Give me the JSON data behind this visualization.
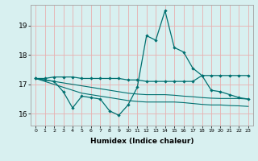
{
  "xlabel": "Humidex (Indice chaleur)",
  "background_color": "#d8f0f0",
  "grid_color": "#e8b0b0",
  "line_color": "#007070",
  "x_ticks": [
    0,
    1,
    2,
    3,
    4,
    5,
    6,
    7,
    8,
    9,
    10,
    11,
    12,
    13,
    14,
    15,
    16,
    17,
    18,
    19,
    20,
    21,
    22,
    23
  ],
  "y_ticks": [
    16,
    17,
    18,
    19
  ],
  "ylim": [
    15.6,
    19.7
  ],
  "xlim": [
    -0.5,
    23.5
  ],
  "line_volatile_x": [
    0,
    1,
    2,
    3,
    4,
    5,
    6,
    7,
    8,
    9,
    10,
    11,
    12,
    13,
    14,
    15,
    16,
    17,
    18,
    19,
    20,
    21,
    22,
    23
  ],
  "line_volatile_y": [
    17.2,
    17.15,
    17.1,
    16.75,
    16.2,
    16.6,
    16.55,
    16.5,
    16.1,
    15.95,
    16.3,
    16.9,
    18.65,
    18.5,
    19.5,
    18.25,
    18.1,
    17.55,
    17.3,
    16.8,
    16.75,
    16.65,
    16.55,
    16.5
  ],
  "line_flat_x": [
    0,
    1,
    2,
    3,
    4,
    5,
    6,
    7,
    8,
    9,
    10,
    11,
    12,
    13,
    14,
    15,
    16,
    17,
    18,
    19,
    20,
    21,
    22,
    23
  ],
  "line_flat_y": [
    17.2,
    17.2,
    17.25,
    17.25,
    17.25,
    17.2,
    17.2,
    17.2,
    17.2,
    17.2,
    17.15,
    17.15,
    17.1,
    17.1,
    17.1,
    17.1,
    17.1,
    17.1,
    17.3,
    17.3,
    17.3,
    17.3,
    17.3,
    17.3
  ],
  "line_decline1_x": [
    0,
    1,
    2,
    3,
    4,
    5,
    6,
    7,
    8,
    9,
    10,
    11,
    12,
    13,
    14,
    15,
    16,
    17,
    18,
    19,
    20,
    21,
    22,
    23
  ],
  "line_decline1_y": [
    17.2,
    17.1,
    17.0,
    16.9,
    16.8,
    16.7,
    16.65,
    16.6,
    16.55,
    16.5,
    16.45,
    16.42,
    16.4,
    16.4,
    16.4,
    16.4,
    16.38,
    16.35,
    16.32,
    16.3,
    16.3,
    16.28,
    16.27,
    16.25
  ],
  "line_decline2_x": [
    0,
    1,
    2,
    3,
    4,
    5,
    6,
    7,
    8,
    9,
    10,
    11,
    12,
    13,
    14,
    15,
    16,
    17,
    18,
    19,
    20,
    21,
    22,
    23
  ],
  "line_decline2_y": [
    17.2,
    17.15,
    17.1,
    17.05,
    17.0,
    16.95,
    16.9,
    16.85,
    16.8,
    16.75,
    16.7,
    16.67,
    16.65,
    16.65,
    16.65,
    16.63,
    16.6,
    16.58,
    16.55,
    16.53,
    16.52,
    16.52,
    16.52,
    16.5
  ]
}
